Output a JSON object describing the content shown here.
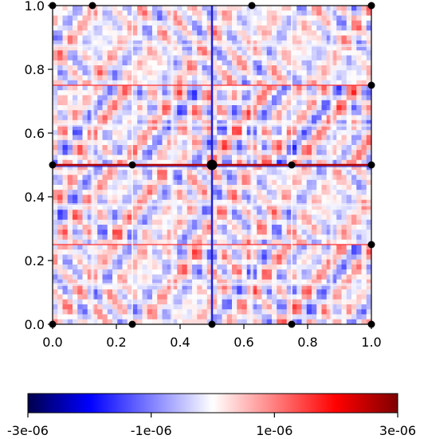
{
  "chart_data": {
    "type": "heatmap",
    "title": "",
    "xlabel": "",
    "ylabel": "",
    "xlim": [
      0.0,
      1.0
    ],
    "ylim": [
      0.0,
      1.0
    ],
    "grid": false,
    "x_ticks": [
      "0.0",
      "0.2",
      "0.4",
      "0.6",
      "0.8",
      "1.0"
    ],
    "y_ticks": [
      "0.0",
      "0.2",
      "0.4",
      "0.6",
      "0.8",
      "1.0"
    ],
    "colormap": {
      "name": "seismic",
      "low_color": "#00004c",
      "mid_color": "#ffffff",
      "high_color": "#7f0000"
    },
    "colorbar": {
      "orientation": "horizontal",
      "range": [
        -3e-06,
        3e-06
      ],
      "tick_labels": [
        "-3e-06",
        "-1e-06",
        "1e-06",
        "3e-06"
      ]
    },
    "markers": [
      {
        "x": 0.0,
        "y": 1.0
      },
      {
        "x": 0.125,
        "y": 1.0
      },
      {
        "x": 0.625,
        "y": 1.0
      },
      {
        "x": 1.0,
        "y": 1.0
      },
      {
        "x": 1.0,
        "y": 0.75
      },
      {
        "x": 0.0,
        "y": 0.5
      },
      {
        "x": 0.25,
        "y": 0.5
      },
      {
        "x": 0.5,
        "y": 0.5
      },
      {
        "x": 0.75,
        "y": 0.5
      },
      {
        "x": 1.0,
        "y": 0.5
      },
      {
        "x": 1.0,
        "y": 0.25
      },
      {
        "x": 0.0,
        "y": 0.0
      },
      {
        "x": 0.25,
        "y": 0.0
      },
      {
        "x": 0.5,
        "y": 0.0
      },
      {
        "x": 0.75,
        "y": 0.0
      },
      {
        "x": 1.0,
        "y": 0.0
      }
    ]
  }
}
